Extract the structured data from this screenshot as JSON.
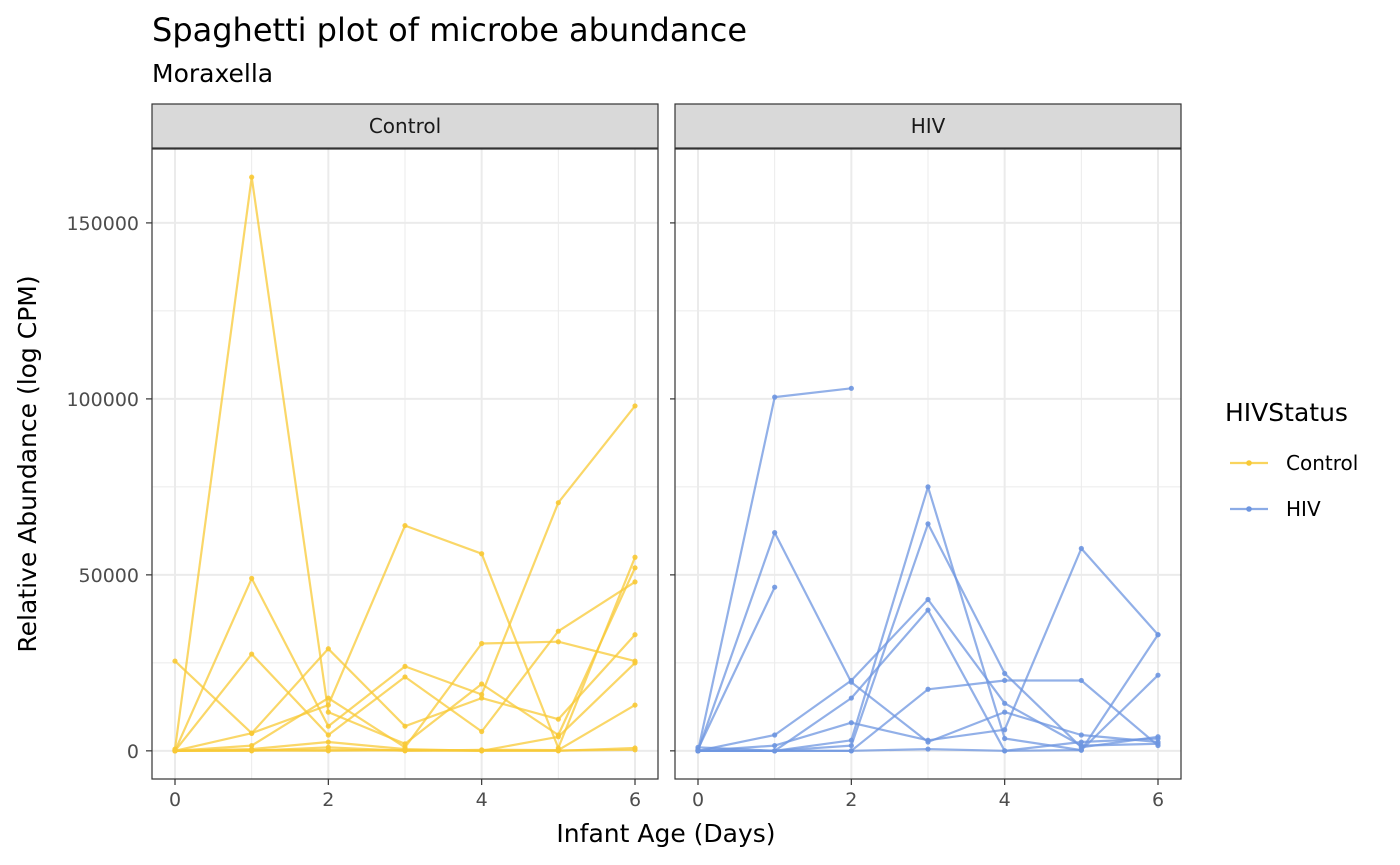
{
  "chart_data": {
    "type": "line",
    "title": "Spaghetti plot of microbe abundance",
    "subtitle": "Moraxella",
    "xlabel": "Infant Age (Days)",
    "ylabel": "Relative Abundance (log CPM)",
    "xlim": [
      -0.3,
      6.3
    ],
    "ylim": [
      -8000,
      171000
    ],
    "x_ticks": [
      0,
      2,
      4,
      6
    ],
    "y_ticks": [
      0,
      50000,
      100000,
      150000
    ],
    "grid": true,
    "legend": {
      "title": "HIVStatus",
      "position": "right",
      "entries": [
        {
          "label": "Control",
          "color": "#F8C935"
        },
        {
          "label": "HIV",
          "color": "#6E96E0"
        }
      ]
    },
    "facets": [
      {
        "label": "Control",
        "color": "#F8C935",
        "series": [
          {
            "x": [
              0,
              1,
              2,
              3,
              4,
              5,
              6
            ],
            "y": [
              500,
              163000,
              11000,
              2000,
              19000,
              4500,
              52000
            ]
          },
          {
            "x": [
              0,
              1,
              2,
              3,
              4,
              5,
              6
            ],
            "y": [
              25500,
              5000,
              13000,
              64000,
              56000,
              800,
              55000
            ]
          },
          {
            "x": [
              0,
              1,
              2,
              3,
              4,
              5,
              6
            ],
            "y": [
              0,
              49000,
              7000,
              24000,
              16000,
              70500,
              98000
            ]
          },
          {
            "x": [
              0,
              1,
              2,
              3,
              4,
              5,
              6
            ],
            "y": [
              0,
              27500,
              4500,
              21000,
              5500,
              34000,
              48000
            ]
          },
          {
            "x": [
              0,
              1,
              2,
              3,
              4,
              5,
              6
            ],
            "y": [
              0,
              5000,
              29000,
              7000,
              15000,
              9000,
              33000
            ]
          },
          {
            "x": [
              0,
              1,
              2,
              3,
              4,
              5,
              6
            ],
            "y": [
              0,
              1500,
              15000,
              1000,
              30500,
              31000,
              25500
            ]
          },
          {
            "x": [
              0,
              1,
              2,
              3,
              4,
              5,
              6
            ],
            "y": [
              0,
              500,
              2500,
              500,
              0,
              4000,
              25000
            ]
          },
          {
            "x": [
              0,
              1,
              2,
              3,
              4,
              5,
              6
            ],
            "y": [
              0,
              0,
              1000,
              0,
              300,
              200,
              13000
            ]
          },
          {
            "x": [
              0,
              1,
              2,
              3,
              4,
              5,
              6
            ],
            "y": [
              0,
              200,
              300,
              100,
              0,
              0,
              800
            ]
          },
          {
            "x": [
              0,
              1,
              2,
              3,
              4,
              5,
              6
            ],
            "y": [
              0,
              100,
              0,
              200,
              100,
              100,
              300
            ]
          }
        ]
      },
      {
        "label": "HIV",
        "color": "#6E96E0",
        "series": [
          {
            "x": [
              0,
              1,
              2
            ],
            "y": [
              0,
              100500,
              103000
            ]
          },
          {
            "x": [
              0,
              1,
              2,
              3,
              4,
              5,
              6
            ],
            "y": [
              0,
              62000,
              19500,
              2500,
              11000,
              4500,
              2500
            ]
          },
          {
            "x": [
              0,
              1
            ],
            "y": [
              500,
              46500
            ]
          },
          {
            "x": [
              0,
              1,
              2,
              3,
              4,
              5,
              6
            ],
            "y": [
              0,
              0,
              3000,
              75000,
              3500,
              200,
              33000
            ]
          },
          {
            "x": [
              0,
              1,
              2,
              3,
              4,
              5,
              6
            ],
            "y": [
              0,
              0,
              1500,
              64500,
              22000,
              1000,
              4000
            ]
          },
          {
            "x": [
              0,
              1,
              2,
              3,
              4,
              5,
              6
            ],
            "y": [
              0,
              4500,
              20000,
              43000,
              13500,
              1500,
              2000
            ]
          },
          {
            "x": [
              0,
              1,
              2,
              3,
              4,
              5,
              6
            ],
            "y": [
              0,
              0,
              15000,
              40000,
              0,
              2500,
              3500
            ]
          },
          {
            "x": [
              0,
              1,
              2,
              3,
              4,
              5,
              6
            ],
            "y": [
              0,
              1500,
              8000,
              3000,
              6000,
              57500,
              33000
            ]
          },
          {
            "x": [
              0,
              1,
              2,
              3,
              4,
              5,
              6
            ],
            "y": [
              1000,
              0,
              0,
              17500,
              20000,
              20000,
              1500
            ]
          },
          {
            "x": [
              0,
              1,
              2,
              3,
              4,
              5,
              6
            ],
            "y": [
              0,
              0,
              0,
              500,
              0,
              200,
              21500
            ]
          }
        ]
      }
    ]
  }
}
